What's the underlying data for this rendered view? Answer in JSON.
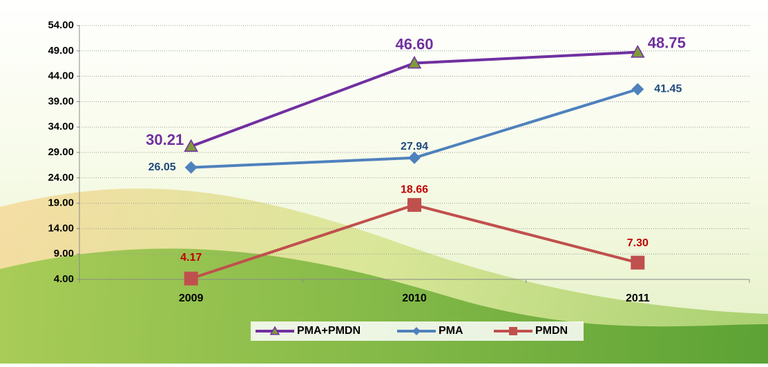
{
  "chart_data": {
    "type": "line",
    "categories": [
      "2009",
      "2010",
      "2011"
    ],
    "series": [
      {
        "name": "PMA+PMDN",
        "color": "#7030a0",
        "label_color": "#7030a0",
        "marker": "triangle",
        "values": [
          30.21,
          46.6,
          48.75
        ],
        "value_labels": [
          "30.21",
          "46.60",
          "48.75"
        ]
      },
      {
        "name": "PMA",
        "color": "#4f81bd",
        "label_color": "#1f497d",
        "marker": "diamond",
        "values": [
          26.05,
          27.94,
          41.45
        ],
        "value_labels": [
          "26.05",
          "27.94",
          "41.45"
        ]
      },
      {
        "name": "PMDN",
        "color": "#c0504d",
        "label_color": "#c00000",
        "marker": "square",
        "values": [
          4.17,
          18.66,
          7.3
        ],
        "value_labels": [
          "4.17",
          "18.66",
          "7.30"
        ]
      }
    ],
    "ylim": [
      4,
      54
    ],
    "yticks": [
      {
        "value": 4,
        "label": "4.00"
      },
      {
        "value": 9,
        "label": "9.00"
      },
      {
        "value": 14,
        "label": "14.00"
      },
      {
        "value": 19,
        "label": "19.00"
      },
      {
        "value": 24,
        "label": "24.00"
      },
      {
        "value": 29,
        "label": "29.00"
      },
      {
        "value": 34,
        "label": "34.00"
      },
      {
        "value": 39,
        "label": "39.00"
      },
      {
        "value": 44,
        "label": "44.00"
      },
      {
        "value": 49,
        "label": "49.00"
      },
      {
        "value": 54,
        "label": "54.00"
      }
    ],
    "grid": true,
    "legend": "bottom"
  }
}
